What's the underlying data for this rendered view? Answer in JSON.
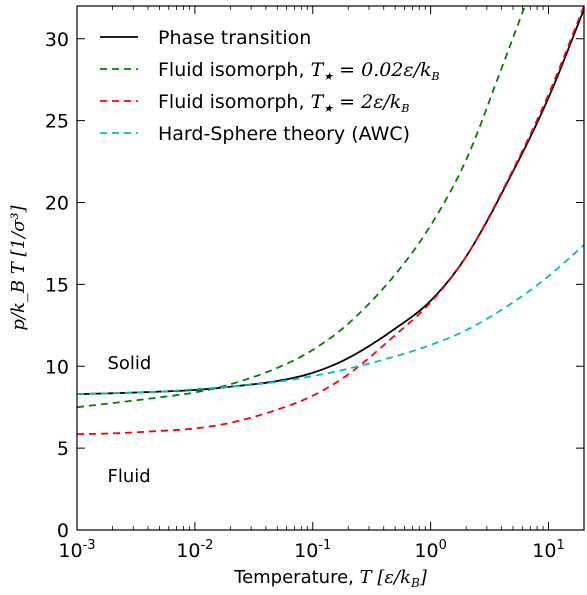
{
  "chart_data": {
    "type": "line",
    "xlabel": "Temperature, T [ε/k_B]",
    "xlabel_parts": {
      "text": "Temperature, ",
      "math_var": "T",
      "math_unit": "[ε/k",
      "math_sub": "B",
      "math_close": "]"
    },
    "ylabel": "p/k_B T [1/σ³]",
    "xscale": "log",
    "xlim": [
      0.001,
      20
    ],
    "ylim": [
      0,
      32
    ],
    "x_ticks": [
      {
        "value": 0.001,
        "base": "10",
        "exp": "-3"
      },
      {
        "value": 0.01,
        "base": "10",
        "exp": "-2"
      },
      {
        "value": 0.1,
        "base": "10",
        "exp": "-1"
      },
      {
        "value": 1,
        "base": "10",
        "exp": "0"
      },
      {
        "value": 10,
        "base": "10",
        "exp": "1"
      }
    ],
    "y_ticks": [
      "0",
      "5",
      "10",
      "15",
      "20",
      "25",
      "30"
    ],
    "grid": false,
    "legend_position": "top-left",
    "annotations": [
      {
        "text": "Solid",
        "x": 0.002,
        "y": 10.2
      },
      {
        "text": "Fluid",
        "x": 0.002,
        "y": 3.3
      }
    ],
    "series": [
      {
        "name": "Phase transition",
        "color": "#000000",
        "style": "solid",
        "x": [
          0.001,
          0.002,
          0.005,
          0.01,
          0.02,
          0.05,
          0.1,
          0.2,
          0.5,
          1,
          2,
          5,
          10,
          20
        ],
        "y": [
          8.3,
          8.35,
          8.45,
          8.55,
          8.75,
          9.1,
          9.6,
          10.5,
          12.3,
          14.0,
          16.7,
          21.9,
          26.4,
          31.8
        ]
      },
      {
        "name": "Fluid isomorph, T★ = 0.02ε/k_B",
        "legend_label": {
          "text": "Fluid isomorph, ",
          "math_var": "T",
          "math_sub": "★",
          "math_rest": " = 0.02ε/k",
          "math_sub2": "B"
        },
        "color": "#008000",
        "style": "dashed",
        "x": [
          0.001,
          0.002,
          0.005,
          0.01,
          0.02,
          0.05,
          0.1,
          0.2,
          0.5,
          1,
          2,
          4,
          6.3
        ],
        "y": [
          7.5,
          7.75,
          8.1,
          8.4,
          8.9,
          9.9,
          11.0,
          12.6,
          15.6,
          18.6,
          22.6,
          28.2,
          32.0
        ]
      },
      {
        "name": "Fluid isomorph, T★ = 2ε/k_B",
        "legend_label": {
          "text": "Fluid isomorph, ",
          "math_var": "T",
          "math_sub": "★",
          "math_rest": " = 2ε/k",
          "math_sub2": "B"
        },
        "color": "#ff0000",
        "style": "dashed",
        "x": [
          0.001,
          0.002,
          0.005,
          0.01,
          0.02,
          0.05,
          0.1,
          0.2,
          0.5,
          1,
          2,
          5,
          10,
          20
        ],
        "y": [
          5.85,
          5.9,
          6.05,
          6.2,
          6.55,
          7.35,
          8.2,
          9.5,
          11.9,
          13.9,
          16.7,
          22.0,
          26.6,
          32.0
        ]
      },
      {
        "name": "Hard-Sphere theory (AWC)",
        "color": "#00bfbf",
        "style": "dashed",
        "x": [
          0.001,
          0.002,
          0.005,
          0.01,
          0.02,
          0.05,
          0.1,
          0.2,
          0.5,
          1,
          2,
          5,
          10,
          20
        ],
        "y": [
          8.3,
          8.35,
          8.45,
          8.6,
          8.75,
          9.05,
          9.4,
          9.85,
          10.6,
          11.3,
          12.2,
          13.9,
          15.5,
          17.4
        ]
      }
    ]
  }
}
